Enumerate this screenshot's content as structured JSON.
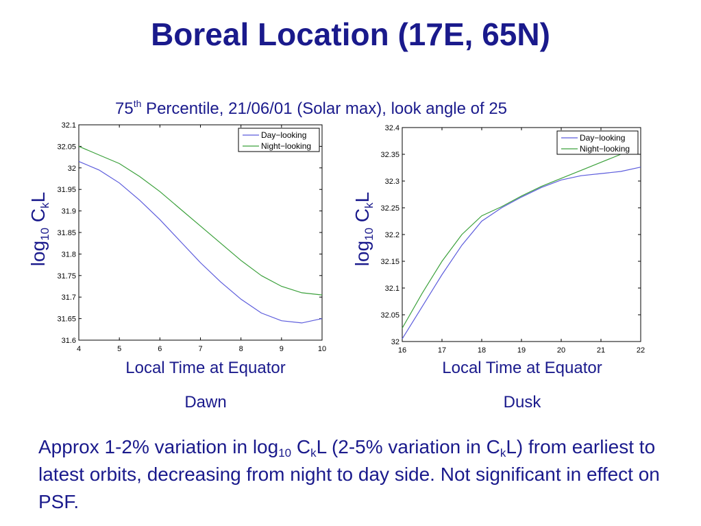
{
  "slide": {
    "title": "Boreal Location (17E, 65N)",
    "subtitle_prefix": "75",
    "subtitle_sup": "th",
    "subtitle_rest": " Percentile, 21/06/01 (Solar max), look angle of 25",
    "ylabel_log": "log",
    "ylabel_sub10": "10",
    "ylabel_C": " C",
    "ylabel_subk": "k",
    "ylabel_L": "L",
    "caption_left_x": "Local Time at Equator",
    "caption_right_x": "Local Time at Equator",
    "caption_left_side": "Dawn",
    "caption_right_side": "Dusk",
    "note_p1": "Approx 1-2% variation in log",
    "note_sub10": "10",
    "note_p2": " C",
    "note_subk1": "k",
    "note_p3": "L (2-5% variation in C",
    "note_subk2": "k",
    "note_p4": "L) from earliest to latest orbits, decreasing from night to day side. Not significant in effect on PSF."
  },
  "colors": {
    "text": "#1a1a8c",
    "day": "#5b5bdc",
    "night": "#3aa03a"
  },
  "chart_data": [
    {
      "type": "line",
      "title": "",
      "xlabel": "Local Time at Equator",
      "ylabel": "log10 CkL",
      "xlim": [
        4,
        10
      ],
      "ylim": [
        31.6,
        32.1
      ],
      "xticks": [
        4,
        5,
        6,
        7,
        8,
        9,
        10
      ],
      "yticks": [
        31.6,
        31.65,
        31.7,
        31.75,
        31.8,
        31.85,
        31.9,
        31.95,
        32,
        32.05,
        32.1
      ],
      "legend_position": "top-right",
      "grid": false,
      "series": [
        {
          "name": "Day−looking",
          "color": "#5b5bdc",
          "x": [
            4,
            4.5,
            5,
            5.5,
            6,
            6.5,
            7,
            7.5,
            8,
            8.5,
            9,
            9.5,
            10
          ],
          "y": [
            32.015,
            31.995,
            31.965,
            31.925,
            31.88,
            31.83,
            31.78,
            31.735,
            31.695,
            31.663,
            31.645,
            31.64,
            31.65
          ]
        },
        {
          "name": "Night−looking",
          "color": "#3aa03a",
          "x": [
            4,
            4.5,
            5,
            5.5,
            6,
            6.5,
            7,
            7.5,
            8,
            8.5,
            9,
            9.5,
            10
          ],
          "y": [
            32.05,
            32.03,
            32.01,
            31.98,
            31.945,
            31.905,
            31.865,
            31.825,
            31.785,
            31.75,
            31.725,
            31.71,
            31.705
          ]
        }
      ]
    },
    {
      "type": "line",
      "title": "",
      "xlabel": "Local Time at Equator",
      "ylabel": "log10 CkL",
      "xlim": [
        16,
        22
      ],
      "ylim": [
        32,
        32.4
      ],
      "xticks": [
        16,
        17,
        18,
        19,
        20,
        21,
        22
      ],
      "yticks": [
        32,
        32.05,
        32.1,
        32.15,
        32.2,
        32.25,
        32.3,
        32.35,
        32.4
      ],
      "legend_position": "top-right",
      "grid": false,
      "series": [
        {
          "name": "Day−looking",
          "color": "#5b5bdc",
          "x": [
            16,
            16.5,
            17,
            17.5,
            18,
            18.5,
            19,
            19.5,
            20,
            20.5,
            21,
            21.5,
            22
          ],
          "y": [
            32.005,
            32.065,
            32.125,
            32.18,
            32.225,
            32.25,
            32.27,
            32.288,
            32.302,
            32.31,
            32.314,
            32.318,
            32.326
          ]
        },
        {
          "name": "Night−looking",
          "color": "#3aa03a",
          "x": [
            16,
            16.5,
            17,
            17.5,
            18,
            18.5,
            19,
            19.5,
            20,
            20.5,
            21,
            21.5
          ],
          "y": [
            32.025,
            32.09,
            32.15,
            32.2,
            32.235,
            32.252,
            32.272,
            32.29,
            32.305,
            32.32,
            32.335,
            32.35
          ]
        }
      ]
    }
  ]
}
